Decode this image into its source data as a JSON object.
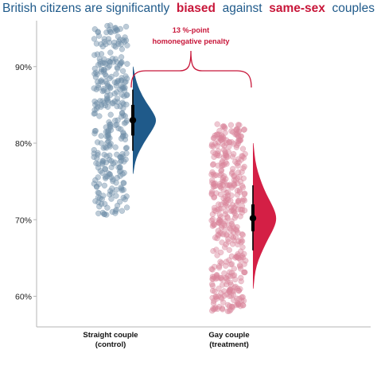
{
  "title": {
    "part1": "British citizens are significantly",
    "part2": "biased",
    "part3": "against",
    "part4": "same-sex",
    "part5": "couples"
  },
  "colors": {
    "control": "#1f5a8a",
    "control_points": "#6f8fa8",
    "treatment": "#d41f45",
    "treatment_points": "#d9869b",
    "annotation": "#c8173a"
  },
  "chart_data": {
    "type": "raincloud",
    "title": "British citizens are significantly biased against same-sex couples",
    "ylabel": "",
    "ylim": [
      56,
      96
    ],
    "yticks": [
      60,
      70,
      80,
      90
    ],
    "ytick_labels": [
      "60%",
      "70%",
      "80%",
      "90%"
    ],
    "series": [
      {
        "name": "Straight couple (control)",
        "label_line1": "Straight couple",
        "label_line2": "(control)",
        "mean": 83,
        "ci": [
          81,
          85
        ],
        "range": [
          79,
          87
        ],
        "points_range": [
          70.5,
          95.5
        ],
        "points_count": 320,
        "density": [
          [
            76,
            0.02
          ],
          [
            78,
            0.12
          ],
          [
            80,
            0.45
          ],
          [
            82,
            0.88
          ],
          [
            83,
            1.0
          ],
          [
            84,
            0.86
          ],
          [
            86,
            0.42
          ],
          [
            88,
            0.14
          ],
          [
            90,
            0.02
          ]
        ]
      },
      {
        "name": "Gay couple (treatment)",
        "label_line1": "Gay couple",
        "label_line2": "(treatment)",
        "mean": 70.2,
        "ci": [
          68.5,
          72
        ],
        "range": [
          66,
          74.5
        ],
        "points_range": [
          58,
          82.5
        ],
        "points_count": 420,
        "density": [
          [
            61,
            0.02
          ],
          [
            64,
            0.12
          ],
          [
            67,
            0.55
          ],
          [
            69,
            0.9
          ],
          [
            70.2,
            1.0
          ],
          [
            71.5,
            0.88
          ],
          [
            74,
            0.45
          ],
          [
            77,
            0.12
          ],
          [
            80,
            0.02
          ]
        ]
      }
    ],
    "annotation": {
      "line1": "13 %-point",
      "line2": "homonegative penalty"
    }
  }
}
